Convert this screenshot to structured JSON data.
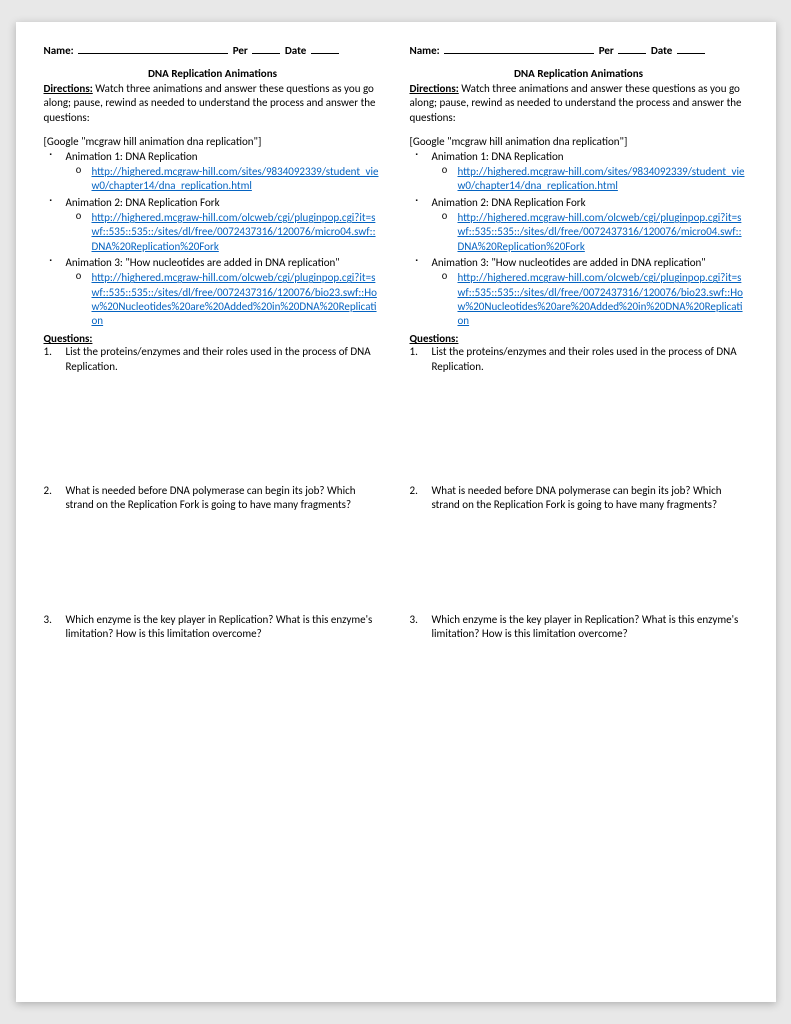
{
  "header": {
    "name_label": "Name:",
    "per_label": "Per",
    "date_label": "Date"
  },
  "title": "DNA Replication Animations",
  "directions": {
    "label": "Directions:",
    "text": "Watch three animations and answer these questions as you go along; pause, rewind as needed to understand the process and answer the questions:"
  },
  "google_note": "[Google \"mcgraw hill animation dna replication\"]",
  "animations": [
    {
      "title": "Animation 1: DNA Replication",
      "url": "http://highered.mcgraw-hill.com/sites/9834092339/student_view0/chapter14/dna_replication.html"
    },
    {
      "title": "Animation 2: DNA Replication Fork",
      "url": "http://highered.mcgraw-hill.com/olcweb/cgi/pluginpop.cgi?it=swf::535::535::/sites/dl/free/0072437316/120076/micro04.swf::DNA%20Replication%20Fork"
    },
    {
      "title": "Animation 3: \"How nucleotides are added in DNA replication\"",
      "url": "http://highered.mcgraw-hill.com/olcweb/cgi/pluginpop.cgi?it=swf::535::535::/sites/dl/free/0072437316/120076/bio23.swf::How%20Nucleotides%20are%20Added%20in%20DNA%20Replication"
    }
  ],
  "questions_label": "Questions:",
  "questions": [
    {
      "num": "1.",
      "text": "List the proteins/enzymes and their roles used in the process of DNA Replication."
    },
    {
      "num": "2.",
      "text": "What is needed before DNA polymerase can begin its job?  Which strand on the Replication Fork is going to have many fragments?"
    },
    {
      "num": "3.",
      "text": "Which enzyme is the key player in Replication? What is this enzyme's limitation? How is this limitation overcome?"
    }
  ],
  "colors": {
    "link": "#0563c1",
    "text": "#000000",
    "page_bg": "#ffffff",
    "body_bg": "#e8e8e8"
  }
}
